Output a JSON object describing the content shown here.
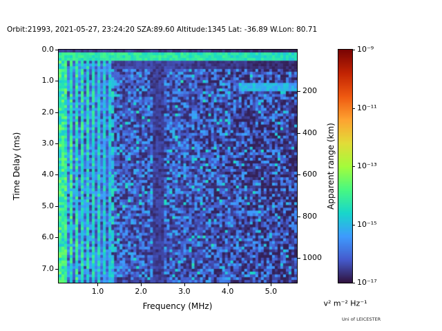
{
  "chart_data": {
    "type": "heatmap",
    "title": "Orbit:21993, 2021-05-27, 23:24:20 SZA:89.60 Altitude:1345 Lat: -36.89 W.Lon: 80.71",
    "xlabel": "Frequency (MHz)",
    "ylabel_left": "Time Delay (ms)",
    "ylabel_right": "Apparent range (km)",
    "colorbar_label": "v² m⁻² Hz⁻¹",
    "credit": "Uni of LEICESTER",
    "x_range_mhz": [
      0.1,
      5.6
    ],
    "y_range_ms": [
      0.0,
      7.45
    ],
    "range_km_per_ms": 150,
    "value_scale": "log10",
    "value_range_exp": [
      -17,
      -9
    ],
    "x_ticks": [
      {
        "v": 1.0,
        "label": "1.0"
      },
      {
        "v": 2.0,
        "label": "2.0"
      },
      {
        "v": 3.0,
        "label": "3.0"
      },
      {
        "v": 4.0,
        "label": "4.0"
      },
      {
        "v": 5.0,
        "label": "5.0"
      }
    ],
    "y_ticks_left": [
      {
        "v": 0.0,
        "label": "0.0"
      },
      {
        "v": 1.0,
        "label": "1.0"
      },
      {
        "v": 2.0,
        "label": "2.0"
      },
      {
        "v": 3.0,
        "label": "3.0"
      },
      {
        "v": 4.0,
        "label": "4.0"
      },
      {
        "v": 5.0,
        "label": "5.0"
      },
      {
        "v": 6.0,
        "label": "6.0"
      },
      {
        "v": 7.0,
        "label": "7.0"
      }
    ],
    "y_ticks_right": [
      {
        "v": 200,
        "label": "200"
      },
      {
        "v": 400,
        "label": "400"
      },
      {
        "v": 600,
        "label": "600"
      },
      {
        "v": 800,
        "label": "800"
      },
      {
        "v": 1000,
        "label": "1000"
      }
    ],
    "colorbar_ticks": [
      "10⁻⁹",
      "10⁻¹¹",
      "10⁻¹³",
      "10⁻¹⁵",
      "10⁻¹⁷"
    ],
    "colormap": {
      "name": "turbo",
      "stops": [
        [
          0.0,
          [
            48,
            18,
            59
          ]
        ],
        [
          0.1,
          [
            69,
            91,
            205
          ]
        ],
        [
          0.2,
          [
            62,
            155,
            254
          ]
        ],
        [
          0.3,
          [
            24,
            214,
            203
          ]
        ],
        [
          0.4,
          [
            72,
            248,
            130
          ]
        ],
        [
          0.5,
          [
            164,
            252,
            59
          ]
        ],
        [
          0.6,
          [
            226,
            220,
            56
          ]
        ],
        [
          0.7,
          [
            254,
            163,
            49
          ]
        ],
        [
          0.8,
          [
            239,
            89,
            17
          ]
        ],
        [
          0.9,
          [
            194,
            36,
            3
          ]
        ],
        [
          1.0,
          [
            122,
            4,
            3
          ]
        ]
      ]
    },
    "grid": {
      "cols": 86,
      "rows": 84,
      "seed": 21993
    },
    "features": {
      "surface_echo_line_ms": [
        0.13,
        0.33
      ],
      "dark_gap_ms": [
        0.33,
        0.62
      ],
      "plasma_line_region_max_mhz": 1.32,
      "dashed_line_mhz": 1.35,
      "dark_band_mhz": [
        2.3,
        2.5
      ],
      "echo_patch_ms": [
        1.05,
        1.35
      ],
      "echo_patch_mhz": [
        4.25,
        5.6
      ],
      "background_exp_range": [
        -17,
        -15.2
      ],
      "speckle_exp_max": -14.2
    }
  }
}
